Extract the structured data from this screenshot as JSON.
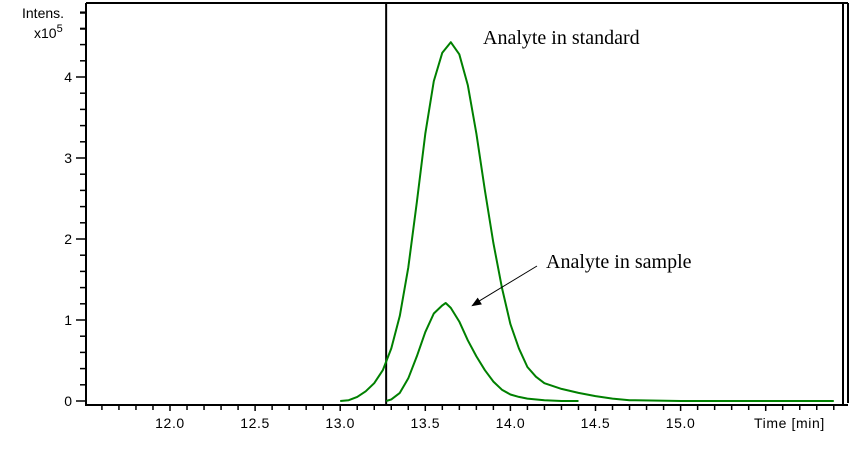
{
  "chart_data": {
    "type": "line",
    "title": "",
    "xlabel": "Time [min]",
    "ylabel": "Intens.",
    "y_multiplier": "x10",
    "y_multiplier_exp": "5",
    "xlim": [
      11.5,
      15.95
    ],
    "ylim": [
      0,
      4.9
    ],
    "x_ticks": [
      "12.0",
      "12.5",
      "13.0",
      "13.5",
      "14.0",
      "14.5",
      "15.0"
    ],
    "y_ticks": [
      "0",
      "1",
      "2",
      "3",
      "4"
    ],
    "grid": false,
    "legend": null,
    "line_color": "#008000",
    "marker_line_x": 13.27,
    "series": [
      {
        "name": "Analyte in standard",
        "x": [
          13.0,
          13.05,
          13.1,
          13.15,
          13.2,
          13.25,
          13.3,
          13.35,
          13.4,
          13.45,
          13.5,
          13.55,
          13.6,
          13.65,
          13.7,
          13.75,
          13.8,
          13.85,
          13.9,
          13.95,
          14.0,
          14.05,
          14.1,
          14.15,
          14.2,
          14.3,
          14.4,
          14.5,
          14.6,
          14.7,
          15.0,
          15.5,
          15.9
        ],
        "values": [
          0.0,
          0.01,
          0.05,
          0.12,
          0.22,
          0.38,
          0.65,
          1.05,
          1.65,
          2.45,
          3.3,
          3.95,
          4.3,
          4.43,
          4.28,
          3.9,
          3.3,
          2.6,
          1.95,
          1.4,
          0.95,
          0.65,
          0.42,
          0.3,
          0.22,
          0.15,
          0.1,
          0.06,
          0.03,
          0.01,
          0.0,
          0.0,
          0.0
        ]
      },
      {
        "name": "Analyte in sample",
        "x": [
          13.27,
          13.3,
          13.35,
          13.4,
          13.45,
          13.5,
          13.55,
          13.6,
          13.62,
          13.65,
          13.7,
          13.75,
          13.8,
          13.85,
          13.9,
          13.95,
          14.0,
          14.05,
          14.1,
          14.2,
          14.3,
          14.4
        ],
        "values": [
          0.0,
          0.02,
          0.1,
          0.28,
          0.55,
          0.85,
          1.08,
          1.18,
          1.21,
          1.15,
          0.98,
          0.75,
          0.55,
          0.38,
          0.24,
          0.14,
          0.08,
          0.05,
          0.03,
          0.01,
          0.0,
          0.0
        ]
      }
    ],
    "annotations": [
      {
        "text": "Analyte in standard",
        "x": 13.83,
        "y": 4.45
      },
      {
        "text": "Analyte in sample",
        "x": 14.2,
        "y": 1.68,
        "arrow_to": [
          13.77,
          1.22
        ]
      }
    ]
  }
}
